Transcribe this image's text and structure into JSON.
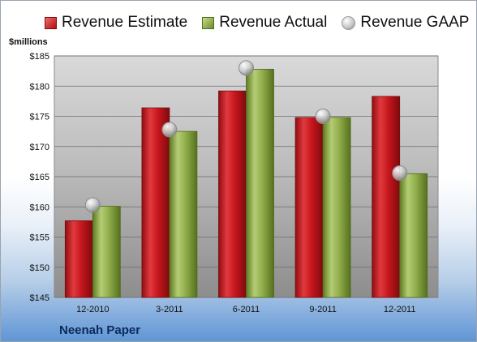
{
  "chart_data": {
    "type": "bar",
    "ylabel": "$millions",
    "ylim": [
      145,
      185
    ],
    "yticks": [
      "$145",
      "$150",
      "$155",
      "$160",
      "$165",
      "$170",
      "$175",
      "$180",
      "$185"
    ],
    "categories": [
      "12-2010",
      "3-2011",
      "6-2011",
      "9-2011",
      "12-2011"
    ],
    "series": [
      {
        "name": "Revenue Estimate",
        "values": [
          157.7,
          176.4,
          179.2,
          174.8,
          178.3
        ],
        "color": "#c8181e"
      },
      {
        "name": "Revenue Actual",
        "values": [
          160.1,
          172.5,
          182.8,
          174.8,
          165.5
        ],
        "color": "#8fac4a"
      },
      {
        "name": "Revenue GAAP",
        "values": [
          160.3,
          172.8,
          183.0,
          175.0,
          165.6
        ],
        "color": "#c0c0c0"
      }
    ],
    "legend_position": "top",
    "grid": true,
    "footer": "Neenah Paper"
  }
}
